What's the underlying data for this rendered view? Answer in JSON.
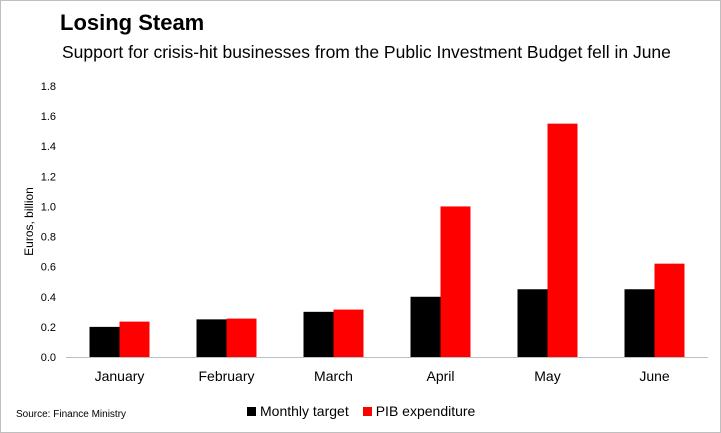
{
  "title": "Losing Steam",
  "subtitle": "Support for crisis-hit businesses from the Public Investment Budget fell in June",
  "source": "Source: Finance Ministry",
  "colors": {
    "monthly_target": "#000000",
    "pib_expenditure": "#ff0000",
    "axis": "#bfbfbf"
  },
  "chart_data": {
    "type": "bar",
    "categories": [
      "January",
      "February",
      "March",
      "April",
      "May",
      "June"
    ],
    "series": [
      {
        "name": "Monthly target",
        "values": [
          0.2,
          0.25,
          0.3,
          0.4,
          0.45,
          0.45
        ]
      },
      {
        "name": "PIB expenditure",
        "values": [
          0.235,
          0.255,
          0.315,
          1.0,
          1.55,
          0.62
        ]
      }
    ],
    "ylabel": "Euros, billion",
    "ylim": [
      0,
      1.8
    ],
    "yticks": [
      "0.0",
      "0.2",
      "0.4",
      "0.6",
      "0.8",
      "1.0",
      "1.2",
      "1.4",
      "1.6",
      "1.8"
    ],
    "grid": false,
    "legend_position": "bottom"
  }
}
